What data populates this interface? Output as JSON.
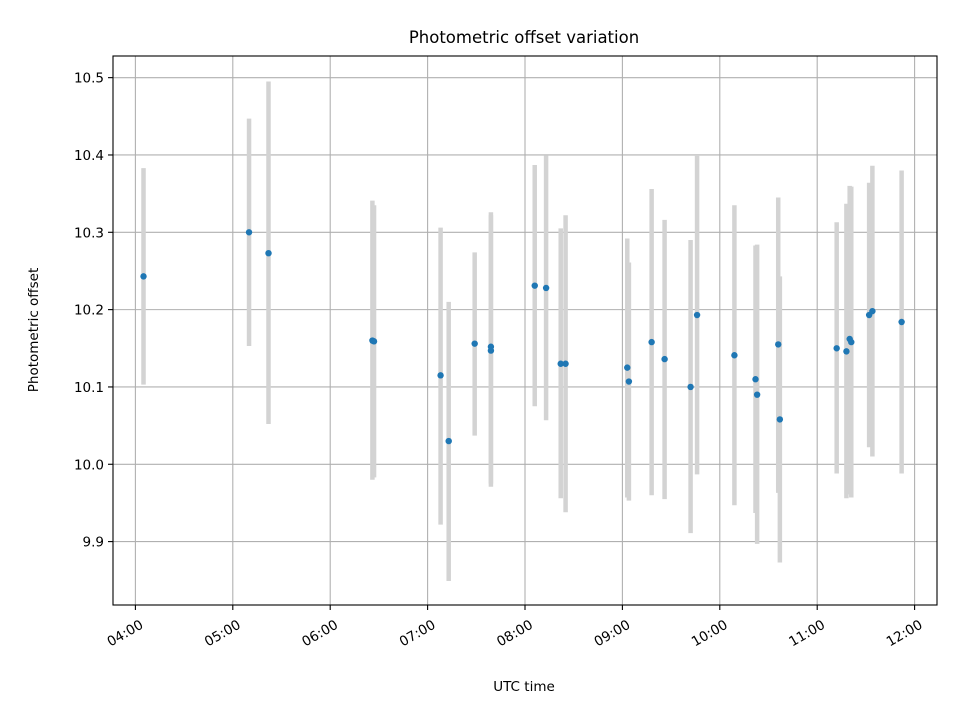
{
  "chart_data": {
    "type": "scatter",
    "title": "Photometric offset variation",
    "xlabel": "UTC time",
    "ylabel": "Photometric offset",
    "x_ticks": [
      "04:00",
      "05:00",
      "06:00",
      "07:00",
      "08:00",
      "09:00",
      "10:00",
      "11:00",
      "12:00"
    ],
    "x_tick_hours": [
      4,
      5,
      6,
      7,
      8,
      9,
      10,
      11,
      12
    ],
    "y_ticks": [
      "9.9",
      "10.0",
      "10.1",
      "10.2",
      "10.3",
      "10.4",
      "10.5"
    ],
    "y_tick_values": [
      9.9,
      10.0,
      10.1,
      10.2,
      10.3,
      10.4,
      10.5
    ],
    "xlim_hours": [
      3.77,
      12.23
    ],
    "ylim": [
      9.818,
      10.528
    ],
    "grid": true,
    "point_color": "#1f77b4",
    "errorbar_color": "#d3d3d3",
    "points": [
      {
        "time": "04:05",
        "y": 10.243,
        "ylo": 10.103,
        "yhi": 10.383
      },
      {
        "time": "05:10",
        "y": 10.3,
        "ylo": 10.153,
        "yhi": 10.447
      },
      {
        "time": "05:22",
        "y": 10.273,
        "ylo": 10.052,
        "yhi": 10.495
      },
      {
        "time": "06:26",
        "y": 10.16,
        "ylo": 9.98,
        "yhi": 10.341
      },
      {
        "time": "06:27",
        "y": 10.159,
        "ylo": 9.983,
        "yhi": 10.335
      },
      {
        "time": "07:08",
        "y": 10.115,
        "ylo": 9.922,
        "yhi": 10.306
      },
      {
        "time": "07:13",
        "y": 10.03,
        "ylo": 9.849,
        "yhi": 10.21
      },
      {
        "time": "07:29",
        "y": 10.156,
        "ylo": 10.037,
        "yhi": 10.274
      },
      {
        "time": "07:39",
        "y": 10.152,
        "ylo": 9.971,
        "yhi": 10.326
      },
      {
        "time": "07:39",
        "y": 10.147,
        "ylo": 9.975,
        "yhi": 10.322
      },
      {
        "time": "08:06",
        "y": 10.231,
        "ylo": 10.075,
        "yhi": 10.387
      },
      {
        "time": "08:13",
        "y": 10.228,
        "ylo": 10.057,
        "yhi": 10.399
      },
      {
        "time": "08:22",
        "y": 10.13,
        "ylo": 9.956,
        "yhi": 10.305
      },
      {
        "time": "08:25",
        "y": 10.13,
        "ylo": 9.938,
        "yhi": 10.322
      },
      {
        "time": "09:03",
        "y": 10.125,
        "ylo": 9.957,
        "yhi": 10.292
      },
      {
        "time": "09:04",
        "y": 10.107,
        "ylo": 9.953,
        "yhi": 10.261
      },
      {
        "time": "09:18",
        "y": 10.158,
        "ylo": 9.96,
        "yhi": 10.356
      },
      {
        "time": "09:26",
        "y": 10.136,
        "ylo": 9.955,
        "yhi": 10.316
      },
      {
        "time": "09:42",
        "y": 10.1,
        "ylo": 9.911,
        "yhi": 10.29
      },
      {
        "time": "09:46",
        "y": 10.193,
        "ylo": 9.987,
        "yhi": 10.4
      },
      {
        "time": "10:09",
        "y": 10.141,
        "ylo": 9.947,
        "yhi": 10.335
      },
      {
        "time": "10:22",
        "y": 10.11,
        "ylo": 9.937,
        "yhi": 10.283
      },
      {
        "time": "10:23",
        "y": 10.09,
        "ylo": 9.897,
        "yhi": 10.284
      },
      {
        "time": "10:36",
        "y": 10.155,
        "ylo": 9.963,
        "yhi": 10.345
      },
      {
        "time": "10:37",
        "y": 10.058,
        "ylo": 9.873,
        "yhi": 10.243
      },
      {
        "time": "11:12",
        "y": 10.15,
        "ylo": 9.988,
        "yhi": 10.313
      },
      {
        "time": "11:18",
        "y": 10.146,
        "ylo": 9.956,
        "yhi": 10.337
      },
      {
        "time": "11:20",
        "y": 10.162,
        "ylo": 9.961,
        "yhi": 10.36
      },
      {
        "time": "11:21",
        "y": 10.158,
        "ylo": 9.957,
        "yhi": 10.359
      },
      {
        "time": "11:32",
        "y": 10.193,
        "ylo": 10.022,
        "yhi": 10.364
      },
      {
        "time": "11:34",
        "y": 10.198,
        "ylo": 10.01,
        "yhi": 10.386
      },
      {
        "time": "11:52",
        "y": 10.184,
        "ylo": 9.988,
        "yhi": 10.38
      }
    ]
  }
}
